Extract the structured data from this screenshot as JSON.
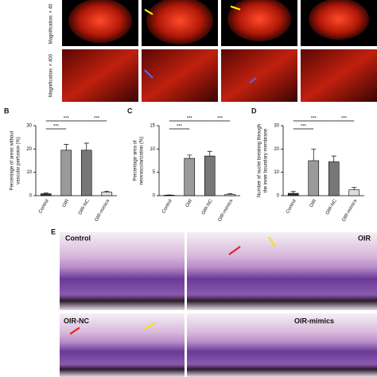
{
  "panel_a": {
    "row_labels": [
      "Magnification: × 40",
      "Magnification: × 400"
    ]
  },
  "panel_e": {
    "label": "E",
    "image_labels": [
      "Control",
      "OIR",
      "OIR-NC",
      "OIR-mimics"
    ]
  },
  "chart_data": [
    {
      "type": "bar",
      "panel_label": "B",
      "y_label": [
        "Percentage of areas without",
        "vascular perfusion (%)"
      ],
      "categories": [
        "Control",
        "OIR",
        "OIR-NC",
        "OIR-mimics"
      ],
      "values": [
        0.8,
        19.5,
        19.5,
        1.5
      ],
      "errors": [
        0.3,
        2.5,
        3,
        0.4
      ],
      "colors": [
        "#333333",
        "#9a9a9a",
        "#777777",
        "#dddddd"
      ],
      "ylim": [
        0,
        30
      ],
      "yticks": [
        0,
        10,
        20,
        30
      ],
      "annotations": [
        "***",
        "***",
        "***"
      ]
    },
    {
      "type": "bar",
      "panel_label": "C",
      "y_label": [
        "Percentage area of",
        "neovascularization (%)"
      ],
      "categories": [
        "Control",
        "OIR",
        "OIR-NC",
        "OIR-mimics"
      ],
      "values": [
        0.1,
        8,
        8.5,
        0.3
      ],
      "errors": [
        0.05,
        0.7,
        1,
        0.1
      ],
      "colors": [
        "#333333",
        "#9a9a9a",
        "#777777",
        "#dddddd"
      ],
      "ylim": [
        0,
        15
      ],
      "yticks": [
        0,
        5,
        10,
        15
      ],
      "annotations": [
        "***",
        "***",
        "***"
      ]
    },
    {
      "type": "bar",
      "panel_label": "D",
      "y_label": [
        "Number of nuclei breaking through",
        "the inner boundary membrane"
      ],
      "categories": [
        "Control",
        "OIR",
        "OIR-NC",
        "OIR-mimics"
      ],
      "values": [
        1,
        15,
        14.5,
        2.5
      ],
      "errors": [
        0.8,
        5,
        2.5,
        1
      ],
      "colors": [
        "#333333",
        "#9a9a9a",
        "#777777",
        "#dddddd"
      ],
      "ylim": [
        0,
        30
      ],
      "yticks": [
        0,
        10,
        20,
        30
      ],
      "annotations": [
        "***",
        "***",
        "***"
      ]
    }
  ]
}
